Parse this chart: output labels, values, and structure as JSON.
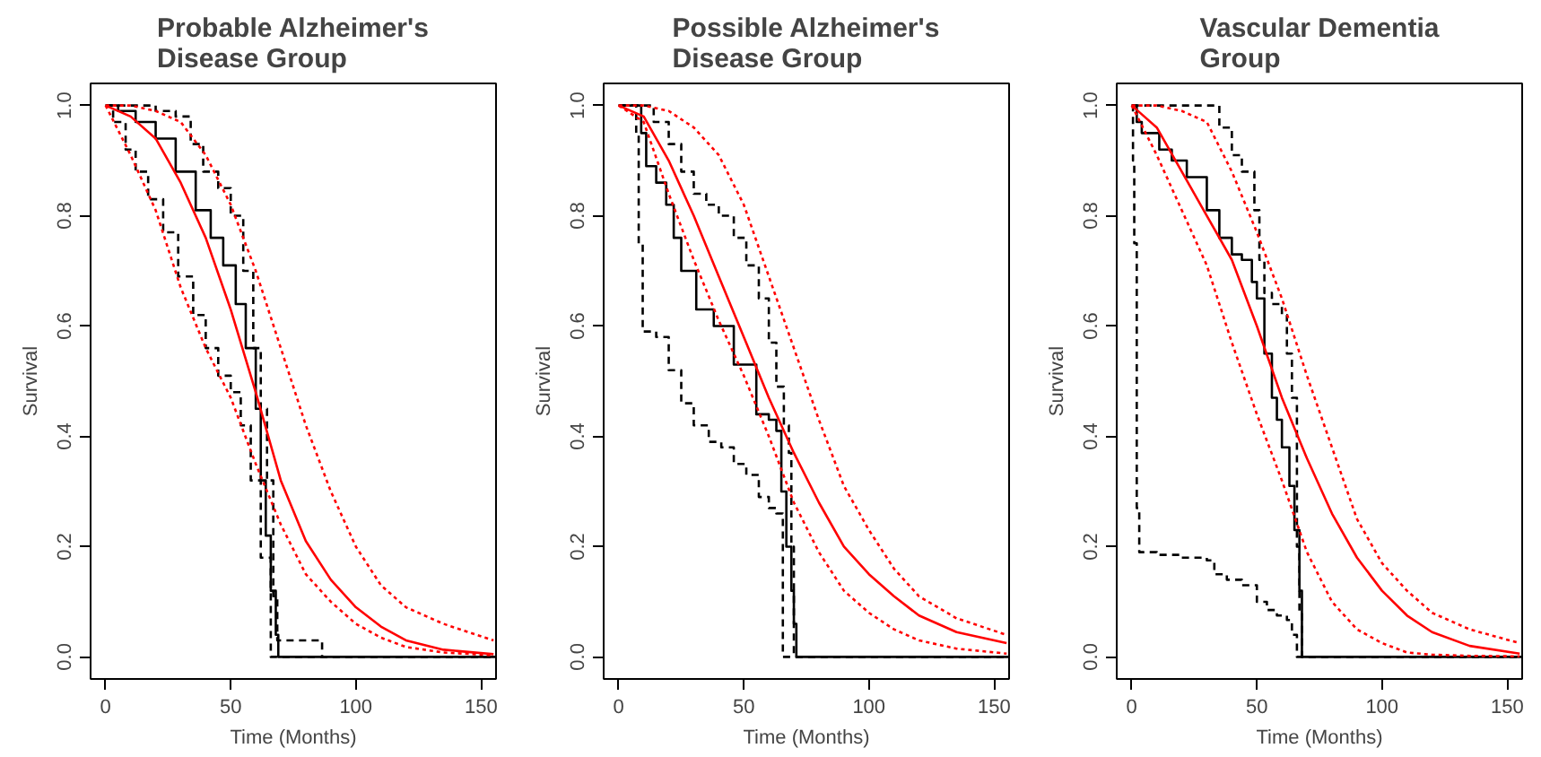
{
  "chart_data": [
    {
      "type": "line",
      "title": "Probable Alzheimer's\nDisease Group",
      "xlabel": "Time (Months)",
      "ylabel": "Survival",
      "xlim": [
        -6,
        156
      ],
      "ylim": [
        -0.04,
        1.04
      ],
      "xticks": [
        0,
        50,
        100,
        150
      ],
      "yticks": [
        {
          "value": 0,
          "label": "0.0"
        },
        {
          "value": 0.2,
          "label": "0.2"
        },
        {
          "value": 0.4,
          "label": "0.4"
        },
        {
          "value": 0.6,
          "label": "0.6"
        },
        {
          "value": 0.8,
          "label": "0.8"
        },
        {
          "value": 1,
          "label": "1.0"
        }
      ],
      "grid": false,
      "series": [
        {
          "type": "step",
          "color": "#000000",
          "line_style": "solid",
          "x": [
            0,
            5,
            12,
            20,
            28,
            36,
            42,
            47,
            52,
            56,
            60,
            62,
            64,
            66,
            68,
            69,
            156
          ],
          "values": [
            1,
            0.99,
            0.97,
            0.94,
            0.88,
            0.81,
            0.76,
            0.71,
            0.64,
            0.56,
            0.45,
            0.32,
            0.22,
            0.12,
            0.04,
            0,
            0
          ]
        },
        {
          "type": "step",
          "color": "#000000",
          "line_style": "dashed",
          "x": [
            0,
            12,
            20,
            28,
            34,
            39,
            45,
            50,
            55,
            59,
            62,
            64.5,
            67,
            68.6,
            86,
            86.5,
            156
          ],
          "values": [
            1,
            1,
            0.99,
            0.98,
            0.93,
            0.88,
            0.85,
            0.8,
            0.7,
            0.56,
            0.45,
            0.32,
            0.11,
            0.03,
            0.03,
            0,
            0
          ]
        },
        {
          "type": "step",
          "color": "#000000",
          "line_style": "dashed",
          "x": [
            0,
            3,
            8,
            12,
            17,
            23,
            29,
            35,
            40,
            45,
            50,
            54,
            58,
            62,
            66,
            156
          ],
          "values": [
            1,
            0.97,
            0.92,
            0.88,
            0.83,
            0.77,
            0.69,
            0.62,
            0.56,
            0.51,
            0.48,
            0.42,
            0.32,
            0.18,
            0,
            0
          ]
        },
        {
          "color": "#ff0000",
          "line_style": "solid",
          "x": [
            0,
            10,
            20,
            30,
            40,
            50,
            60,
            70,
            80,
            90,
            100,
            110,
            120,
            135,
            155
          ],
          "values": [
            1,
            0.98,
            0.94,
            0.86,
            0.76,
            0.63,
            0.48,
            0.32,
            0.21,
            0.14,
            0.09,
            0.055,
            0.03,
            0.013,
            0.005
          ]
        },
        {
          "color": "#ff0000",
          "line_style": "dotted",
          "x": [
            0,
            10,
            20,
            30,
            40,
            50,
            60,
            70,
            80,
            90,
            100,
            110,
            120,
            135,
            155
          ],
          "values": [
            1,
            1,
            0.99,
            0.97,
            0.91,
            0.82,
            0.7,
            0.56,
            0.42,
            0.3,
            0.2,
            0.13,
            0.09,
            0.06,
            0.03
          ]
        },
        {
          "color": "#ff0000",
          "line_style": "dotted",
          "x": [
            0,
            10,
            20,
            30,
            40,
            50,
            60,
            70,
            80,
            90,
            100,
            110,
            120,
            135,
            155
          ],
          "values": [
            1,
            0.91,
            0.81,
            0.67,
            0.56,
            0.47,
            0.35,
            0.24,
            0.15,
            0.1,
            0.06,
            0.035,
            0.018,
            0.008,
            0.003
          ]
        }
      ]
    },
    {
      "type": "line",
      "title": "Possible Alzheimer's\nDisease Group",
      "xlabel": "Time (Months)",
      "ylabel": "Survival",
      "xlim": [
        -6,
        156
      ],
      "ylim": [
        -0.04,
        1.04
      ],
      "xticks": [
        0,
        50,
        100,
        150
      ],
      "yticks": [
        {
          "value": 0,
          "label": "0.0"
        },
        {
          "value": 0.2,
          "label": "0.2"
        },
        {
          "value": 0.4,
          "label": "0.4"
        },
        {
          "value": 0.6,
          "label": "0.6"
        },
        {
          "value": 0.8,
          "label": "0.8"
        },
        {
          "value": 1,
          "label": "1.0"
        }
      ],
      "grid": false,
      "series": [
        {
          "type": "step",
          "color": "#000000",
          "line_style": "solid",
          "x": [
            0,
            7,
            9,
            11,
            15,
            19,
            22,
            25,
            31,
            38,
            46,
            55,
            60,
            63,
            65,
            67,
            69,
            70,
            71,
            156
          ],
          "values": [
            1,
            1,
            0.95,
            0.89,
            0.86,
            0.82,
            0.76,
            0.7,
            0.63,
            0.6,
            0.53,
            0.44,
            0.43,
            0.41,
            0.3,
            0.2,
            0.12,
            0.06,
            0,
            0
          ]
        },
        {
          "type": "step",
          "color": "#000000",
          "line_style": "dashed",
          "x": [
            0,
            10,
            14,
            20,
            25,
            30,
            35,
            40,
            46,
            51,
            56,
            60,
            63,
            66,
            68,
            69,
            70,
            156
          ],
          "values": [
            1,
            1,
            0.97,
            0.93,
            0.88,
            0.84,
            0.82,
            0.8,
            0.76,
            0.71,
            0.65,
            0.57,
            0.49,
            0.42,
            0.37,
            0.2,
            0,
            0
          ]
        },
        {
          "type": "step",
          "color": "#000000",
          "line_style": "dashed",
          "x": [
            0,
            7,
            8,
            9.6,
            15,
            20,
            25,
            30,
            36,
            41,
            46,
            51,
            56,
            60,
            63,
            65.6,
            156
          ],
          "values": [
            1,
            0.95,
            0.75,
            0.59,
            0.58,
            0.52,
            0.46,
            0.42,
            0.39,
            0.38,
            0.35,
            0.33,
            0.29,
            0.27,
            0.26,
            0,
            0
          ]
        },
        {
          "color": "#ff0000",
          "line_style": "solid",
          "x": [
            0,
            10,
            20,
            30,
            40,
            50,
            60,
            70,
            80,
            90,
            100,
            110,
            120,
            135,
            155
          ],
          "values": [
            1,
            0.98,
            0.9,
            0.8,
            0.69,
            0.58,
            0.47,
            0.37,
            0.28,
            0.2,
            0.15,
            0.11,
            0.075,
            0.045,
            0.025
          ]
        },
        {
          "color": "#ff0000",
          "line_style": "dotted",
          "x": [
            0,
            10,
            20,
            30,
            40,
            50,
            60,
            70,
            80,
            90,
            100,
            110,
            120,
            135,
            155
          ],
          "values": [
            1,
            1,
            0.99,
            0.96,
            0.91,
            0.82,
            0.69,
            0.56,
            0.43,
            0.31,
            0.23,
            0.16,
            0.11,
            0.07,
            0.04
          ]
        },
        {
          "color": "#ff0000",
          "line_style": "dotted",
          "x": [
            0,
            10,
            20,
            30,
            40,
            50,
            60,
            70,
            80,
            90,
            100,
            110,
            120,
            135,
            155
          ],
          "values": [
            1,
            0.97,
            0.84,
            0.72,
            0.61,
            0.51,
            0.4,
            0.28,
            0.19,
            0.12,
            0.08,
            0.05,
            0.03,
            0.015,
            0.006
          ]
        }
      ]
    },
    {
      "type": "line",
      "title": "Vascular Dementia\nGroup",
      "xlabel": "Time (Months)",
      "ylabel": "Survival",
      "xlim": [
        -6,
        156
      ],
      "ylim": [
        -0.04,
        1.04
      ],
      "xticks": [
        0,
        50,
        100,
        150
      ],
      "yticks": [
        {
          "value": 0,
          "label": "0.0"
        },
        {
          "value": 0.2,
          "label": "0.2"
        },
        {
          "value": 0.4,
          "label": "0.4"
        },
        {
          "value": 0.6,
          "label": "0.6"
        },
        {
          "value": 0.8,
          "label": "0.8"
        },
        {
          "value": 1,
          "label": "1.0"
        }
      ],
      "grid": false,
      "series": [
        {
          "type": "step",
          "color": "#000000",
          "line_style": "solid",
          "x": [
            0,
            2,
            4,
            11,
            16,
            22,
            30,
            35,
            40,
            44,
            48,
            50,
            53,
            56,
            58,
            60,
            63,
            65,
            67,
            68,
            156
          ],
          "values": [
            1,
            0.97,
            0.95,
            0.92,
            0.9,
            0.87,
            0.81,
            0.76,
            0.73,
            0.72,
            0.68,
            0.65,
            0.55,
            0.47,
            0.43,
            0.38,
            0.31,
            0.23,
            0.12,
            0,
            0
          ]
        },
        {
          "type": "step",
          "color": "#000000",
          "line_style": "dashed",
          "x": [
            0,
            20,
            30,
            35,
            40,
            44,
            49,
            51,
            53,
            56,
            60,
            62,
            64,
            66,
            67,
            68,
            156
          ],
          "values": [
            1,
            1,
            1,
            0.96,
            0.91,
            0.88,
            0.81,
            0.72,
            0.66,
            0.64,
            0.62,
            0.55,
            0.47,
            0.2,
            0.08,
            0,
            0
          ]
        },
        {
          "type": "step",
          "color": "#000000",
          "line_style": "dashed",
          "x": [
            0,
            0.5,
            1,
            2,
            3,
            10,
            20,
            30,
            33,
            38,
            44,
            50,
            54,
            58,
            62,
            64,
            66,
            156
          ],
          "values": [
            1,
            0.9,
            0.75,
            0.27,
            0.19,
            0.185,
            0.18,
            0.175,
            0.15,
            0.14,
            0.13,
            0.1,
            0.085,
            0.075,
            0.067,
            0.04,
            0,
            0
          ]
        },
        {
          "color": "#ff0000",
          "line_style": "solid",
          "x": [
            0,
            10,
            20,
            30,
            40,
            50,
            60,
            70,
            80,
            90,
            100,
            110,
            120,
            135,
            155
          ],
          "values": [
            1,
            0.96,
            0.88,
            0.8,
            0.72,
            0.6,
            0.47,
            0.36,
            0.26,
            0.18,
            0.12,
            0.075,
            0.045,
            0.02,
            0.006
          ]
        },
        {
          "color": "#ff0000",
          "line_style": "dotted",
          "x": [
            0,
            10,
            20,
            30,
            40,
            50,
            60,
            70,
            80,
            90,
            100,
            110,
            120,
            135,
            155
          ],
          "values": [
            1,
            1,
            0.99,
            0.97,
            0.88,
            0.77,
            0.65,
            0.51,
            0.38,
            0.25,
            0.17,
            0.12,
            0.08,
            0.05,
            0.025
          ]
        },
        {
          "color": "#ff0000",
          "line_style": "dotted",
          "x": [
            0,
            10,
            20,
            30,
            40,
            50,
            60,
            70,
            80,
            90,
            100,
            110,
            120,
            135,
            155
          ],
          "values": [
            1,
            0.91,
            0.81,
            0.71,
            0.57,
            0.44,
            0.32,
            0.19,
            0.1,
            0.05,
            0.025,
            0.008,
            0.004,
            0.002,
            0.001
          ]
        }
      ]
    }
  ]
}
